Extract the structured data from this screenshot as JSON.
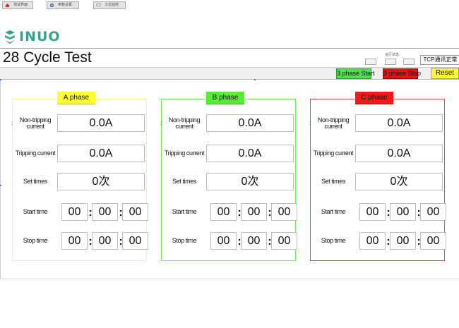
{
  "logo": {
    "text": "INUO",
    "icon": "inuo-s-logo-icon"
  },
  "window": {
    "title": "28 Cycle Test"
  },
  "status": {
    "label": "运行状态",
    "tcp": "TCP通讯正常"
  },
  "toolbar": {
    "items": [
      {
        "label": "测试界面",
        "icon": "home-icon"
      },
      {
        "label": "参数设置",
        "icon": "settings-icon"
      },
      {
        "label": "工位监控",
        "icon": "monitor-icon"
      }
    ],
    "start_label": "3 phase Start",
    "stop_label": "3 phase Stop",
    "reset_label": "Reset"
  },
  "labels": {
    "non_tripping": "Non-tripping current",
    "tripping": "Tripping current",
    "set_times": "Set times",
    "start_time": "Start time",
    "stop_time": "Stop time"
  },
  "phases": [
    {
      "name": "A phase",
      "color": "#ffff33",
      "border": "#ffff66",
      "non_tripping": "0.0A",
      "tripping": "0.0A",
      "set_times": "0次",
      "start": [
        "00",
        "00",
        "00"
      ],
      "stop": [
        "00",
        "00",
        "00"
      ]
    },
    {
      "name": "B phase",
      "color": "#55ee33",
      "border": "#77ee55",
      "non_tripping": "0.0A",
      "tripping": "0.0A",
      "set_times": "0次",
      "start": [
        "00",
        "00",
        "00"
      ],
      "stop": [
        "00",
        "00",
        "00"
      ]
    },
    {
      "name": "C phase",
      "color": "#ee1a1a",
      "border": "#ee4444",
      "non_tripping": "0.0A",
      "tripping": "0.0A",
      "set_times": "0次",
      "start": [
        "00",
        "00",
        "00"
      ],
      "stop": [
        "00",
        "00",
        "00"
      ]
    }
  ]
}
